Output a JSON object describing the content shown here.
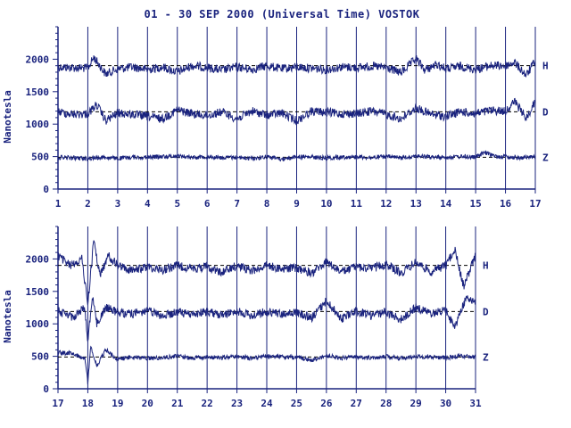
{
  "title": "01 - 30 SEP 2000 (Universal Time) VOSTOK",
  "chart_data": [
    {
      "type": "line",
      "panel": "top",
      "ylabel": "Nanotesla",
      "ylim": [
        0,
        2500
      ],
      "yticks": [
        0,
        500,
        1000,
        1500,
        2000
      ],
      "xlim": [
        1,
        17
      ],
      "xticks": [
        "1",
        "2",
        "3",
        "4",
        "5",
        "6",
        "7",
        "8",
        "9",
        "10",
        "11",
        "12",
        "13",
        "14",
        "15",
        "16",
        "17"
      ],
      "grid": "vertical day lines",
      "series": [
        {
          "name": "H",
          "baseline": 1900,
          "color": "#1a237e",
          "x": [
            1,
            1.5,
            2,
            2.2,
            2.6,
            3,
            3.5,
            4,
            4.5,
            5,
            5.5,
            6,
            6.5,
            7,
            7.5,
            8,
            8.5,
            9,
            9.5,
            10,
            10.5,
            11,
            11.5,
            12,
            12.5,
            13,
            13.3,
            13.7,
            14,
            14.5,
            15,
            15.5,
            16,
            16.3,
            16.7,
            17
          ],
          "values": [
            1880,
            1870,
            1860,
            2030,
            1770,
            1850,
            1880,
            1840,
            1880,
            1800,
            1900,
            1870,
            1830,
            1880,
            1840,
            1900,
            1850,
            1880,
            1860,
            1840,
            1880,
            1870,
            1890,
            1870,
            1790,
            2010,
            1830,
            1920,
            1850,
            1890,
            1840,
            1900,
            1900,
            1950,
            1750,
            1980
          ]
        },
        {
          "name": "D",
          "baseline": 1190,
          "color": "#1a237e",
          "x": [
            1,
            1.5,
            2,
            2.3,
            2.6,
            3,
            3.5,
            4,
            4.5,
            5,
            5.5,
            6,
            6.5,
            7,
            7.5,
            8,
            8.5,
            9,
            9.5,
            10,
            10.5,
            11,
            11.5,
            12,
            12.5,
            13,
            13.5,
            14,
            14.5,
            15,
            15.5,
            16,
            16.3,
            16.7,
            17
          ],
          "values": [
            1190,
            1150,
            1160,
            1300,
            1050,
            1170,
            1150,
            1120,
            1080,
            1220,
            1160,
            1130,
            1190,
            1080,
            1200,
            1140,
            1170,
            1050,
            1200,
            1180,
            1160,
            1160,
            1200,
            1150,
            1080,
            1250,
            1150,
            1120,
            1190,
            1160,
            1210,
            1200,
            1350,
            1090,
            1360
          ]
        },
        {
          "name": "Z",
          "baseline": 490,
          "color": "#1a237e",
          "x": [
            1,
            1.5,
            2,
            2.5,
            3,
            3.5,
            4,
            4.5,
            5,
            5.5,
            6,
            6.5,
            7,
            7.5,
            8,
            8.5,
            9,
            9.5,
            10,
            10.5,
            11,
            11.5,
            12,
            12.5,
            13,
            13.5,
            14,
            14.5,
            15,
            15.3,
            15.7,
            16,
            16.5,
            17
          ],
          "values": [
            490,
            480,
            470,
            490,
            470,
            490,
            490,
            500,
            510,
            490,
            500,
            480,
            490,
            470,
            500,
            460,
            500,
            490,
            480,
            490,
            500,
            480,
            500,
            480,
            510,
            490,
            490,
            500,
            490,
            560,
            500,
            500,
            480,
            500
          ]
        }
      ]
    },
    {
      "type": "line",
      "panel": "bottom",
      "ylabel": "Nanotesla",
      "ylim": [
        0,
        2500
      ],
      "yticks": [
        0,
        500,
        1000,
        1500,
        2000
      ],
      "xlim": [
        17,
        31
      ],
      "xticks": [
        "17",
        "18",
        "19",
        "20",
        "21",
        "22",
        "23",
        "24",
        "25",
        "26",
        "27",
        "28",
        "29",
        "30",
        "31"
      ],
      "grid": "vertical day lines",
      "series": [
        {
          "name": "H",
          "baseline": 1900,
          "color": "#1a237e",
          "x": [
            17,
            17.4,
            17.8,
            18,
            18.2,
            18.4,
            18.7,
            19,
            19.5,
            20,
            20.5,
            21,
            21.5,
            22,
            22.5,
            23,
            23.5,
            24,
            24.5,
            25,
            25.5,
            26,
            26.5,
            27,
            27.5,
            28,
            28.5,
            29,
            29.5,
            30,
            30.3,
            30.6,
            31
          ],
          "values": [
            2050,
            1900,
            2000,
            1300,
            2300,
            1750,
            2050,
            1900,
            1820,
            1880,
            1830,
            1900,
            1850,
            1880,
            1790,
            1900,
            1820,
            1900,
            1850,
            1860,
            1780,
            1950,
            1800,
            1880,
            1850,
            1920,
            1780,
            1950,
            1800,
            1900,
            2150,
            1580,
            2050
          ]
        },
        {
          "name": "D",
          "baseline": 1190,
          "color": "#1a237e",
          "x": [
            17,
            17.5,
            17.9,
            18,
            18.15,
            18.3,
            18.6,
            19,
            19.5,
            20,
            20.5,
            21,
            21.5,
            22,
            22.5,
            23,
            23.5,
            24,
            24.5,
            25,
            25.5,
            26,
            26.5,
            27,
            27.5,
            28,
            28.5,
            29,
            29.5,
            30,
            30.3,
            30.7,
            31
          ],
          "values": [
            1200,
            1100,
            1250,
            700,
            1450,
            1000,
            1250,
            1180,
            1150,
            1200,
            1120,
            1180,
            1140,
            1190,
            1130,
            1200,
            1120,
            1190,
            1150,
            1170,
            1090,
            1350,
            1080,
            1200,
            1130,
            1180,
            1070,
            1250,
            1160,
            1200,
            950,
            1420,
            1300
          ]
        },
        {
          "name": "Z",
          "baseline": 490,
          "color": "#1a237e",
          "x": [
            17,
            17.5,
            17.9,
            18,
            18.1,
            18.3,
            18.6,
            19,
            19.5,
            20,
            20.5,
            21,
            21.5,
            22,
            22.5,
            23,
            23.5,
            24,
            24.5,
            25,
            25.5,
            26,
            26.5,
            27,
            27.5,
            28,
            28.5,
            29,
            29.5,
            30,
            30.5,
            31
          ],
          "values": [
            560,
            540,
            460,
            100,
            650,
            350,
            600,
            450,
            490,
            470,
            480,
            500,
            470,
            490,
            480,
            500,
            470,
            500,
            490,
            480,
            440,
            510,
            470,
            490,
            480,
            500,
            470,
            500,
            490,
            480,
            500,
            490
          ]
        }
      ]
    }
  ]
}
